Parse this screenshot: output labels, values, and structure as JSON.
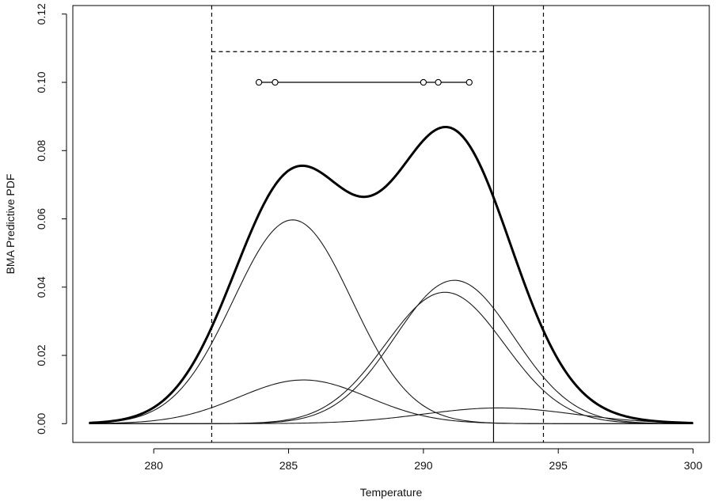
{
  "chart_data": {
    "type": "line",
    "title": "",
    "xlabel": "Temperature",
    "ylabel": "BMA Predictive PDF",
    "xlim": [
      277.0,
      300.6
    ],
    "ylim": [
      -0.0055,
      0.1225
    ],
    "x_ticks": [
      280,
      285,
      290,
      295,
      300
    ],
    "x_tick_labels": [
      "280",
      "285",
      "290",
      "295",
      "300"
    ],
    "y_ticks": [
      0.0,
      0.02,
      0.04,
      0.06,
      0.08,
      0.1,
      0.12
    ],
    "y_tick_labels": [
      "0.00",
      "0.02",
      "0.04",
      "0.06",
      "0.08",
      "0.10",
      "0.12"
    ],
    "grid": false,
    "legend": "none",
    "curve_x_range": [
      277.6,
      300.0
    ],
    "bma_total_curve": {
      "line_width": "thick",
      "color": "#000000"
    },
    "weighted_components": [
      {
        "mean": 285.15,
        "sd": 2.2,
        "peak": 0.0597
      },
      {
        "mean": 285.55,
        "sd": 2.4,
        "peak": 0.0128
      },
      {
        "mean": 290.8,
        "sd": 2.2,
        "peak": 0.0385
      },
      {
        "mean": 291.15,
        "sd": 2.2,
        "peak": 0.042
      },
      {
        "mean": 292.8,
        "sd": 2.8,
        "peak": 0.0046
      }
    ],
    "ensemble_members": {
      "y": 0.1,
      "x": [
        283.9,
        284.5,
        290.0,
        290.55,
        291.7
      ]
    },
    "verifying_observation": {
      "x": 292.6,
      "style": "solid"
    },
    "prediction_interval": {
      "lower": 282.15,
      "upper": 294.45,
      "top_y": 0.109,
      "style": "dashed"
    }
  }
}
